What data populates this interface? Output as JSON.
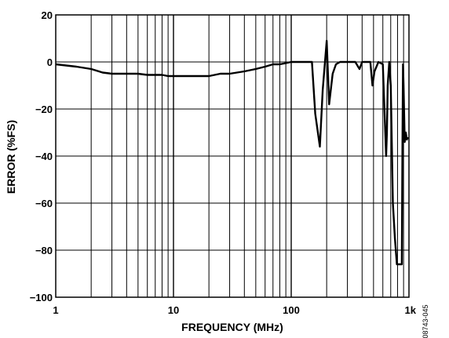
{
  "chart_data": {
    "type": "line",
    "xlabel": "FREQUENCY (MHz)",
    "ylabel": "ERROR (%FS)",
    "x_scale": "log",
    "xlim": [
      1,
      1000
    ],
    "ylim": [
      -100,
      20
    ],
    "grid": true,
    "x_tick_labels": [
      {
        "value": 1,
        "label": "1"
      },
      {
        "value": 10,
        "label": "10"
      },
      {
        "value": 100,
        "label": "100"
      },
      {
        "value": 1000,
        "label": "1k"
      }
    ],
    "y_tick_labels": [
      {
        "value": 20,
        "label": "20"
      },
      {
        "value": 0,
        "label": "0"
      },
      {
        "value": -20,
        "label": "−20"
      },
      {
        "value": -40,
        "label": "−40"
      },
      {
        "value": -60,
        "label": "−60"
      },
      {
        "value": -80,
        "label": "−80"
      },
      {
        "value": -100,
        "label": "−100"
      }
    ],
    "series": [
      {
        "x": [
          1,
          1.5,
          2,
          2.5,
          3,
          4,
          5,
          6,
          7,
          8,
          9,
          10,
          12,
          15,
          20,
          25,
          30,
          40,
          50,
          60,
          70,
          80,
          90,
          100,
          120,
          150,
          160,
          175,
          185,
          200,
          210,
          225,
          240,
          260,
          300,
          350,
          380,
          400,
          420,
          450,
          470,
          490,
          510,
          550,
          600,
          640,
          650,
          660,
          680,
          700,
          730,
          760,
          790,
          810,
          830,
          850,
          870,
          880,
          890,
          900,
          920,
          940,
          960,
          980
        ],
        "y": [
          -1,
          -2,
          -3,
          -4.5,
          -5,
          -5,
          -5,
          -5.5,
          -5.5,
          -5.5,
          -6,
          -6,
          -6,
          -6,
          -6,
          -5,
          -5,
          -4,
          -3,
          -2,
          -1,
          -1,
          -0.5,
          0,
          0,
          0,
          -22,
          -36,
          -12,
          9,
          -18,
          -5,
          -1,
          0,
          0,
          0,
          -3,
          0,
          0,
          0,
          0,
          -10,
          -4,
          0,
          -1,
          -40,
          -30,
          -10,
          0,
          -10,
          -60,
          -75,
          -86,
          -86,
          -86,
          -86,
          -86,
          -36,
          -1,
          -10,
          -34,
          -30,
          -33,
          -32
        ]
      }
    ]
  },
  "figure_id": "08743-045"
}
